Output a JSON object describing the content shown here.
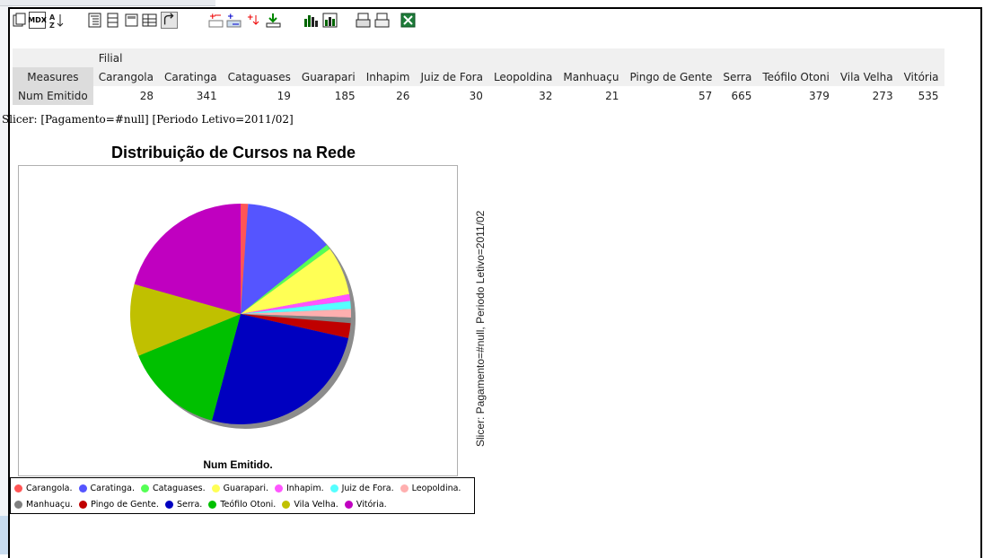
{
  "toolbar": {
    "buttons": [
      {
        "name": "cube-navigator-icon",
        "label": ""
      },
      {
        "name": "mdx-editor-button",
        "label": "MDX"
      },
      {
        "name": "sort-az-icon",
        "label": ""
      },
      {
        "name": "show-parent-members-icon",
        "label": ""
      },
      {
        "name": "hide-spans-icon",
        "label": ""
      },
      {
        "name": "show-properties-icon",
        "label": ""
      },
      {
        "name": "suppress-empty-icon",
        "label": ""
      },
      {
        "name": "swap-axes-icon",
        "label": ""
      },
      {
        "name": "drill-member-icon",
        "label": ""
      },
      {
        "name": "drill-position-icon",
        "label": ""
      },
      {
        "name": "drill-replace-icon",
        "label": ""
      },
      {
        "name": "drill-through-icon",
        "label": ""
      },
      {
        "name": "show-chart-icon",
        "label": ""
      },
      {
        "name": "chart-config-icon",
        "label": ""
      },
      {
        "name": "print-config-icon",
        "label": ""
      },
      {
        "name": "print-pdf-icon",
        "label": ""
      },
      {
        "name": "excel-export-icon",
        "label": ""
      }
    ]
  },
  "table": {
    "column_dimension": "Filial",
    "row_header": "Measures",
    "columns": [
      "Carangola",
      "Caratinga",
      "Cataguases",
      "Guarapari",
      "Inhapim",
      "Juiz de Fora",
      "Leopoldina",
      "Manhuaçu",
      "Pingo de Gente",
      "Serra",
      "Teófilo Otoni",
      "Vila Velha",
      "Vitória"
    ],
    "rows": [
      {
        "label": "Num Emitido",
        "values": [
          "28",
          "341",
          "19",
          "185",
          "26",
          "30",
          "32",
          "21",
          "57",
          "665",
          "379",
          "273",
          "535"
        ]
      }
    ]
  },
  "slicer_text": "Slicer: [Pagamento=#null] [Periodo Letivo=2011/02]",
  "chart_vertical_label": "Slicer: Pagamento=#null, Periodo Letivo=2011/02",
  "chart_data": {
    "type": "pie",
    "title": "Distribuição de Cursos na Rede",
    "series_label": "Num Emitido.",
    "categories": [
      "Carangola",
      "Caratinga",
      "Cataguases",
      "Guarapari",
      "Inhapim",
      "Juiz de Fora",
      "Leopoldina",
      "Manhuaçu",
      "Pingo de Gente",
      "Serra",
      "Teófilo Otoni",
      "Vila Velha",
      "Vitória"
    ],
    "values": [
      28,
      341,
      19,
      185,
      26,
      30,
      32,
      21,
      57,
      665,
      379,
      273,
      535
    ],
    "colors": [
      "#ff5555",
      "#5555ff",
      "#55ff55",
      "#ffff55",
      "#ff55ff",
      "#55ffff",
      "#ffafaf",
      "#808080",
      "#c00000",
      "#0000c0",
      "#00c000",
      "#c0c000",
      "#c000c0"
    ],
    "legend": {
      "rows": [
        [
          "Carangola.",
          "Caratinga.",
          "Cataguases.",
          "Guarapari.",
          "Inhapim.",
          "Juiz de Fora.",
          "Leopoldina."
        ],
        [
          "Manhuaçu.",
          "Pingo de Gente.",
          "Serra.",
          "Teófilo Otoni.",
          "Vila Velha.",
          "Vitória."
        ]
      ],
      "placement": "bottom"
    }
  }
}
